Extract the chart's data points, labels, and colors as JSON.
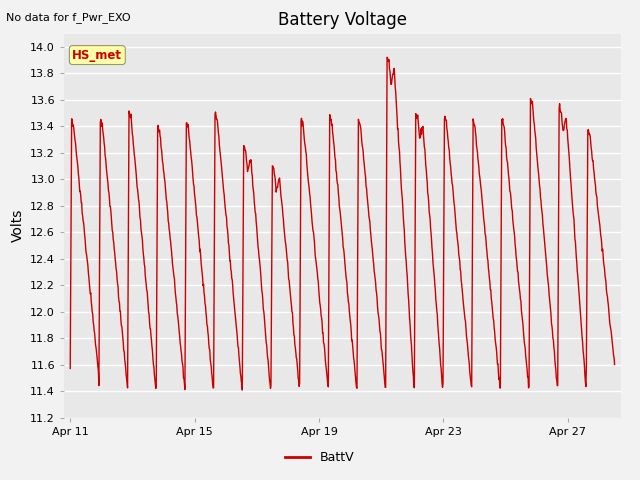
{
  "title": "Battery Voltage",
  "top_left_text": "No data for f_Pwr_EXO",
  "ylabel": "Volts",
  "legend_label": "BattV",
  "legend_color": "#cc0000",
  "ylim": [
    11.2,
    14.1
  ],
  "yticks": [
    11.2,
    11.4,
    11.6,
    11.8,
    12.0,
    12.2,
    12.4,
    12.6,
    12.8,
    13.0,
    13.2,
    13.4,
    13.6,
    13.8,
    14.0
  ],
  "plot_bg_color": "#e8e8e8",
  "fig_bg_color": "#f2f2f2",
  "line_color": "#cc0000",
  "line_width": 1.0,
  "xtick_labels": [
    "Apr 11",
    "Apr 15",
    "Apr 19",
    "Apr 23",
    "Apr 27"
  ],
  "xtick_days": [
    0,
    4,
    8,
    12,
    16
  ],
  "total_days": 17.5,
  "annotation_box_text": "HS_met",
  "annotation_box_color": "#ffffaa",
  "annotation_text_color": "#cc0000",
  "n_cycles": 19,
  "cycle_highs": [
    13.43,
    13.45,
    13.5,
    13.4,
    13.43,
    13.5,
    13.25,
    13.1,
    13.45,
    13.47,
    13.45,
    13.92,
    13.5,
    13.47,
    13.43,
    13.45,
    13.6,
    13.55,
    13.38
  ],
  "cycle_lows": [
    11.55,
    11.45,
    11.42,
    11.45,
    11.42,
    11.44,
    11.4,
    11.43,
    11.45,
    11.43,
    11.44,
    11.44,
    11.43,
    11.44,
    11.43,
    11.44,
    11.44,
    11.43,
    11.6
  ],
  "mid_dips": [
    false,
    false,
    false,
    false,
    false,
    false,
    true,
    true,
    false,
    false,
    false,
    true,
    true,
    false,
    false,
    false,
    false,
    true,
    false
  ]
}
